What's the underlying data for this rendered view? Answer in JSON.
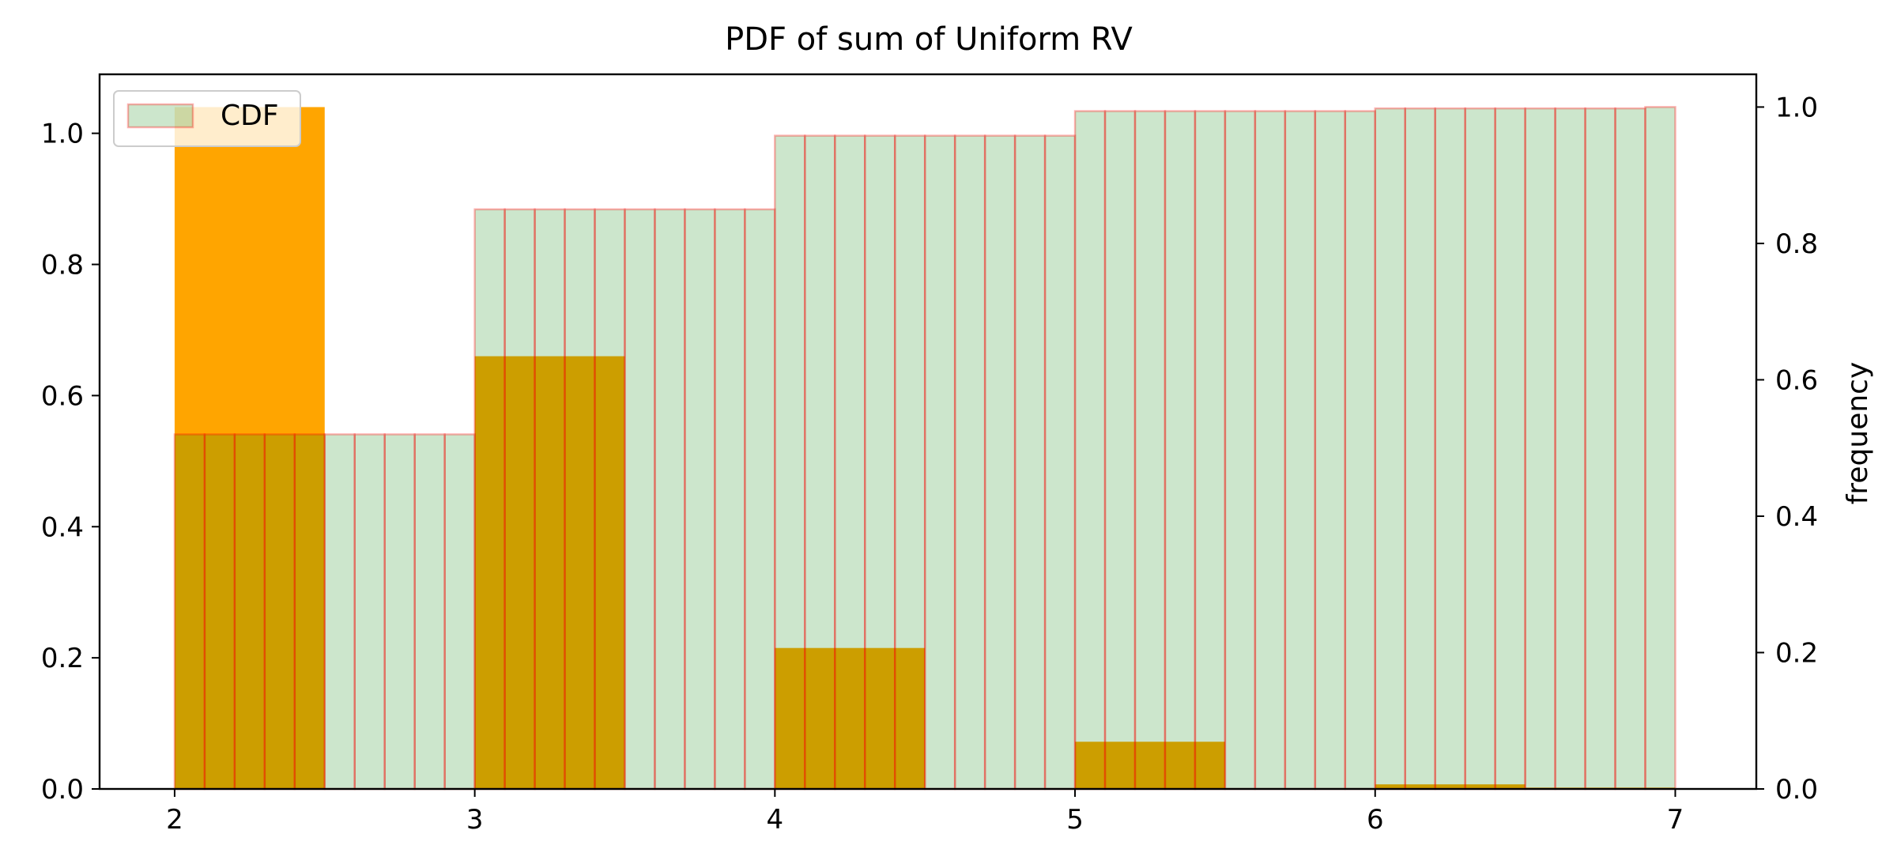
{
  "chart_data": {
    "type": "bar",
    "title": "PDF of sum of Uniform RV",
    "xlabel": "",
    "ylabel_left": "",
    "ylabel_right": "frequency",
    "xlim": [
      1.75,
      7.27
    ],
    "ylim_left": [
      0,
      1.09
    ],
    "ylim_right": [
      0,
      1.048
    ],
    "xticks": [
      "2",
      "3",
      "4",
      "5",
      "6",
      "7"
    ],
    "yticks_left": [
      "0.0",
      "0.2",
      "0.4",
      "0.6",
      "0.8",
      "1.0"
    ],
    "yticks_right": [
      "0.0",
      "0.2",
      "0.4",
      "0.6",
      "0.8",
      "1.0"
    ],
    "grid": false,
    "legend": {
      "position": "top-left",
      "entries": [
        "CDF"
      ]
    },
    "colors": {
      "pdf_bar": "#ffa500",
      "cdf_fill": "#cde5cd",
      "cdf_edge": "#f08070",
      "overlap": "#cca000"
    },
    "series": [
      {
        "axis": "left",
        "style": "histogram",
        "bin_width": 0.5,
        "bin_edges_start": [
          2.0,
          2.5,
          3.0,
          3.5,
          4.0,
          4.5,
          5.0,
          5.5,
          6.0,
          6.5
        ],
        "values": [
          1.04,
          0.0,
          0.66,
          0.0,
          0.215,
          0.0,
          0.072,
          0.0,
          0.007,
          0.002
        ]
      },
      {
        "name": "CDF",
        "axis": "right",
        "style": "histogram",
        "bin_width": 0.1,
        "x_start": 2.0,
        "values": [
          0.52,
          0.52,
          0.52,
          0.52,
          0.52,
          0.52,
          0.52,
          0.52,
          0.52,
          0.52,
          0.85,
          0.85,
          0.85,
          0.85,
          0.85,
          0.85,
          0.85,
          0.85,
          0.85,
          0.85,
          0.958,
          0.958,
          0.958,
          0.958,
          0.958,
          0.958,
          0.958,
          0.958,
          0.958,
          0.958,
          0.994,
          0.994,
          0.994,
          0.994,
          0.994,
          0.994,
          0.994,
          0.994,
          0.994,
          0.994,
          0.998,
          0.998,
          0.998,
          0.998,
          0.998,
          0.998,
          0.998,
          0.998,
          0.998,
          1.0
        ]
      }
    ]
  }
}
